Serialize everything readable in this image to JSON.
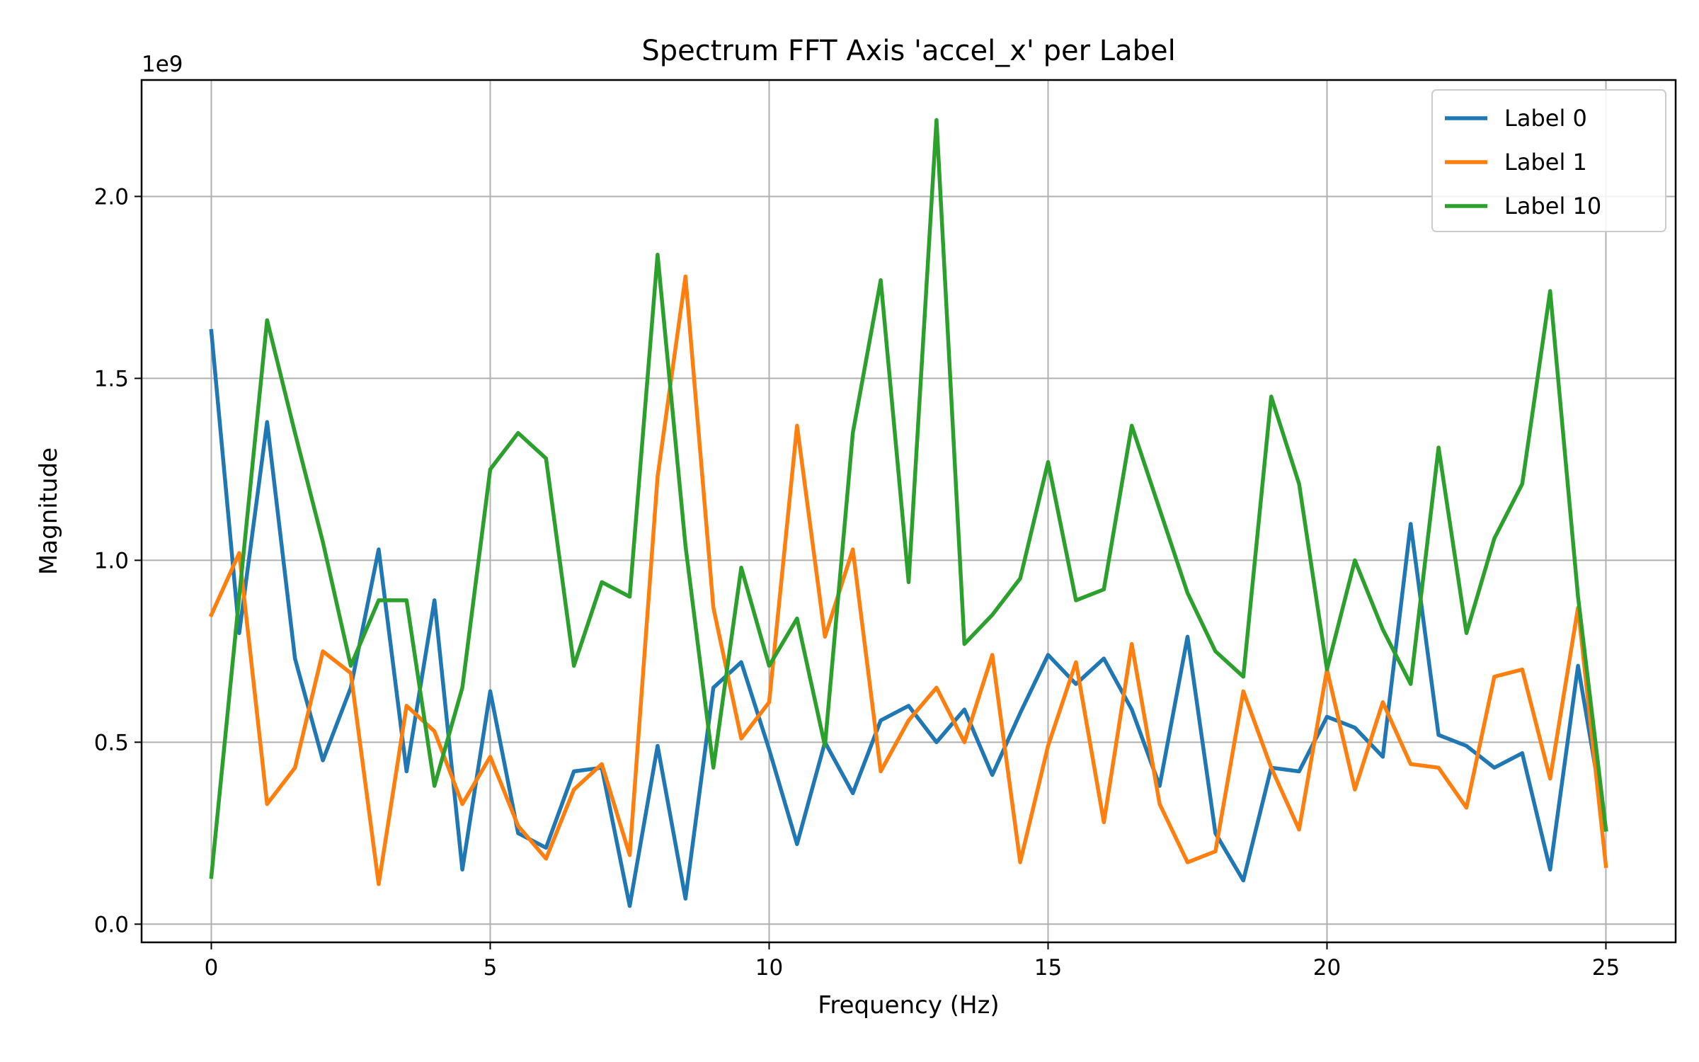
{
  "chart_data": {
    "type": "line",
    "title": "Spectrum FFT Axis 'accel_x' per Label",
    "xlabel": "Frequency (Hz)",
    "ylabel": "Magnitude",
    "y_offset_text": "1e9",
    "xlim": [
      -1.25,
      26.25
    ],
    "ylim": [
      -0.05,
      2.32
    ],
    "x_ticks": [
      0,
      5,
      10,
      15,
      20,
      25
    ],
    "x_tick_labels": [
      "0",
      "5",
      "10",
      "15",
      "20",
      "25"
    ],
    "y_ticks": [
      0.0,
      0.5,
      1.0,
      1.5,
      2.0
    ],
    "y_tick_labels": [
      "0.0",
      "0.5",
      "1.0",
      "1.5",
      "2.0"
    ],
    "grid": true,
    "legend_position": "top-right",
    "x": [
      0,
      0.5,
      1,
      1.5,
      2,
      2.5,
      3,
      3.5,
      4,
      4.5,
      5,
      5.5,
      6,
      6.5,
      7,
      7.5,
      8,
      8.5,
      9,
      9.5,
      10,
      10.5,
      11,
      11.5,
      12,
      12.5,
      13,
      13.5,
      14,
      14.5,
      15,
      15.5,
      16,
      16.5,
      17,
      17.5,
      18,
      18.5,
      19,
      19.5,
      20,
      20.5,
      21,
      21.5,
      22,
      22.5,
      23,
      23.5,
      24,
      24.5,
      25
    ],
    "series": [
      {
        "name": "Label 0",
        "color": "#1f77b4",
        "values": [
          1.63,
          0.8,
          1.38,
          0.73,
          0.45,
          0.65,
          1.03,
          0.42,
          0.89,
          0.15,
          0.64,
          0.25,
          0.21,
          0.42,
          0.43,
          0.05,
          0.49,
          0.07,
          0.65,
          0.72,
          0.48,
          0.22,
          0.5,
          0.36,
          0.56,
          0.6,
          0.5,
          0.59,
          0.41,
          0.58,
          0.74,
          0.66,
          0.73,
          0.59,
          0.38,
          0.79,
          0.25,
          0.12,
          0.43,
          0.42,
          0.57,
          0.54,
          0.46,
          1.1,
          0.52,
          0.49,
          0.43,
          0.47,
          0.15,
          0.71,
          0.26
        ]
      },
      {
        "name": "Label 1",
        "color": "#ff7f0e",
        "values": [
          0.85,
          1.02,
          0.33,
          0.43,
          0.75,
          0.69,
          0.11,
          0.6,
          0.53,
          0.33,
          0.46,
          0.27,
          0.18,
          0.37,
          0.44,
          0.19,
          1.23,
          1.78,
          0.87,
          0.51,
          0.61,
          1.37,
          0.79,
          1.03,
          0.42,
          0.56,
          0.65,
          0.5,
          0.74,
          0.17,
          0.49,
          0.72,
          0.28,
          0.77,
          0.33,
          0.17,
          0.2,
          0.64,
          0.43,
          0.26,
          0.7,
          0.37,
          0.61,
          0.44,
          0.43,
          0.32,
          0.68,
          0.7,
          0.4,
          0.87,
          0.16
        ]
      },
      {
        "name": "Label 10",
        "color": "#2ca02c",
        "values": [
          0.13,
          0.9,
          1.66,
          1.35,
          1.05,
          0.71,
          0.89,
          0.89,
          0.38,
          0.65,
          1.25,
          1.35,
          1.28,
          0.71,
          0.94,
          0.9,
          1.84,
          1.04,
          0.43,
          0.98,
          0.71,
          0.84,
          0.49,
          1.35,
          1.77,
          0.94,
          2.21,
          0.77,
          0.85,
          0.95,
          1.27,
          0.89,
          0.92,
          1.37,
          1.14,
          0.91,
          0.75,
          0.68,
          1.45,
          1.21,
          0.7,
          1.0,
          0.81,
          0.66,
          1.31,
          0.8,
          1.06,
          1.21,
          1.74,
          0.9,
          0.26
        ]
      }
    ]
  }
}
